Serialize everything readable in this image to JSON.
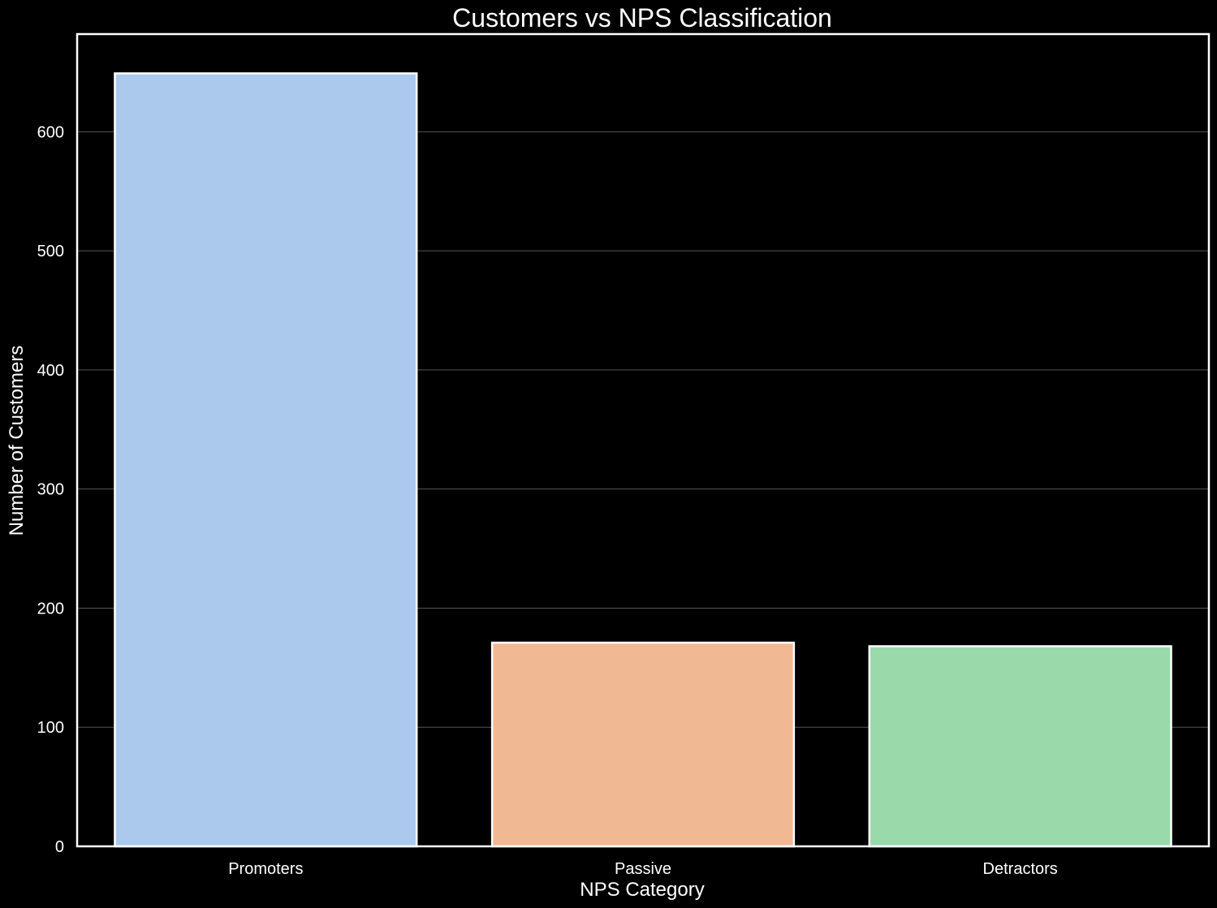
{
  "chart_data": {
    "type": "bar",
    "title": "Customers vs NPS Classification",
    "xlabel": "NPS Category",
    "ylabel": "Number of Customers",
    "categories": [
      "Promoters",
      "Passive",
      "Detractors"
    ],
    "values": [
      649,
      171,
      168
    ],
    "ylim": [
      0,
      682
    ],
    "yticks": [
      0,
      100,
      200,
      300,
      400,
      500,
      600
    ],
    "grid": "horizontal",
    "colors": [
      "#abc9ed",
      "#f1b894",
      "#9adaaa"
    ],
    "background": "#000000",
    "text_color": "#ffffff"
  }
}
